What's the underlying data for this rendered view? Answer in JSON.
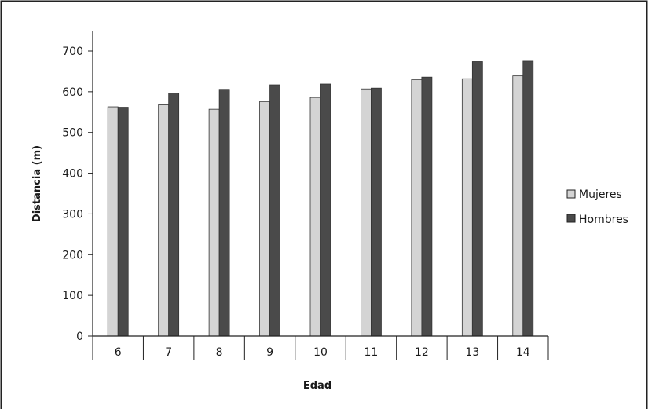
{
  "chart_data": {
    "type": "bar",
    "title": "",
    "xlabel": "Edad",
    "ylabel": "Distancia (m)",
    "categories": [
      "6",
      "7",
      "8",
      "9",
      "10",
      "11",
      "12",
      "13",
      "14"
    ],
    "series": [
      {
        "name": "Mujeres",
        "values": [
          563,
          568,
          557,
          576,
          586,
          607,
          630,
          632,
          639
        ],
        "color": "#d4d4d4"
      },
      {
        "name": "Hombres",
        "values": [
          562,
          597,
          606,
          617,
          619,
          609,
          636,
          674,
          675
        ],
        "color": "#4a4a4a"
      }
    ],
    "ylim": [
      0,
      700
    ],
    "yticks": [
      "0",
      "100",
      "200",
      "300",
      "400",
      "500",
      "600",
      "700"
    ],
    "grid": false,
    "legend": "right"
  }
}
